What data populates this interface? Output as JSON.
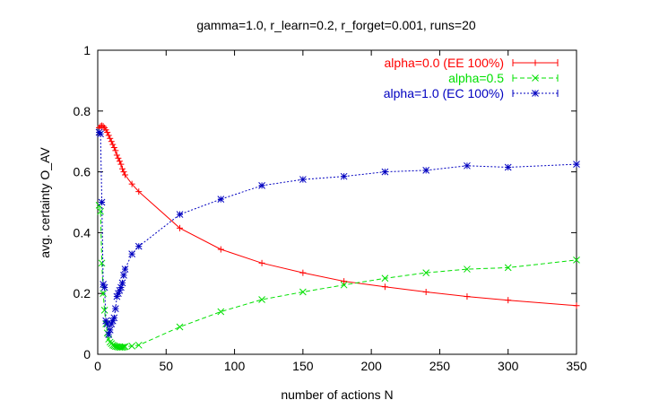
{
  "chart_data": {
    "type": "line",
    "title": "gamma=1.0, r_learn=0.2, r_forget=0.001, runs=20",
    "xlabel": "number of actions N",
    "ylabel": "avg. certainty O_AV",
    "xlim": [
      0,
      350
    ],
    "ylim": [
      0,
      1
    ],
    "xticks": [
      "0",
      "50",
      "100",
      "150",
      "200",
      "250",
      "300",
      "350"
    ],
    "yticks": [
      "0",
      "0.2",
      "0.4",
      "0.6",
      "0.8",
      "1"
    ],
    "grid": false,
    "legend_position": "top-right",
    "series": [
      {
        "name": "alpha=0.0 (EE 100%)",
        "color": "#ff0000",
        "marker": "plus",
        "x": [
          1,
          2,
          3,
          4,
          5,
          6,
          7,
          8,
          9,
          10,
          11,
          12,
          13,
          14,
          15,
          16,
          17,
          18,
          19,
          20,
          25,
          30,
          60,
          90,
          120,
          150,
          180,
          210,
          240,
          270,
          300,
          350
        ],
        "y": [
          0.745,
          0.75,
          0.752,
          0.75,
          0.745,
          0.738,
          0.73,
          0.72,
          0.71,
          0.7,
          0.69,
          0.68,
          0.67,
          0.655,
          0.645,
          0.635,
          0.625,
          0.61,
          0.6,
          0.59,
          0.56,
          0.535,
          0.415,
          0.345,
          0.3,
          0.268,
          0.24,
          0.222,
          0.205,
          0.19,
          0.178,
          0.16
        ]
      },
      {
        "name": "alpha=0.5",
        "color": "#00e000",
        "marker": "cross",
        "x": [
          1,
          2,
          3,
          4,
          5,
          6,
          7,
          8,
          9,
          10,
          11,
          12,
          13,
          14,
          15,
          16,
          17,
          18,
          19,
          20,
          25,
          30,
          60,
          90,
          120,
          150,
          180,
          210,
          240,
          270,
          300,
          350
        ],
        "y": [
          0.49,
          0.47,
          0.3,
          0.2,
          0.145,
          0.1,
          0.07,
          0.05,
          0.04,
          0.035,
          0.03,
          0.028,
          0.026,
          0.025,
          0.024,
          0.023,
          0.023,
          0.023,
          0.024,
          0.025,
          0.027,
          0.03,
          0.09,
          0.14,
          0.18,
          0.205,
          0.228,
          0.25,
          0.268,
          0.28,
          0.285,
          0.31
        ]
      },
      {
        "name": "alpha=1.0 (EC 100%)",
        "color": "#0000c0",
        "marker": "star",
        "x": [
          1,
          2,
          3,
          4,
          5,
          6,
          7,
          8,
          9,
          10,
          11,
          12,
          13,
          14,
          15,
          16,
          17,
          18,
          19,
          20,
          25,
          30,
          60,
          90,
          120,
          150,
          180,
          210,
          240,
          270,
          300,
          350
        ],
        "y": [
          0.73,
          0.725,
          0.5,
          0.23,
          0.22,
          0.11,
          0.1,
          0.065,
          0.08,
          0.1,
          0.11,
          0.12,
          0.15,
          0.19,
          0.2,
          0.21,
          0.22,
          0.235,
          0.26,
          0.28,
          0.33,
          0.355,
          0.46,
          0.51,
          0.555,
          0.575,
          0.585,
          0.6,
          0.605,
          0.62,
          0.615,
          0.625
        ]
      }
    ]
  }
}
